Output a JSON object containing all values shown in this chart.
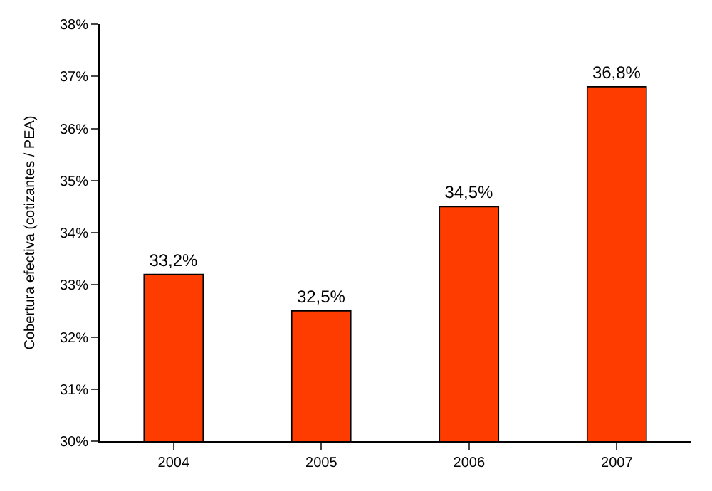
{
  "chart_data": {
    "type": "bar",
    "ylabel": "Cobertura efectiva (cotizantes / PEA)",
    "categories": [
      "2004",
      "2005",
      "2006",
      "2007"
    ],
    "values": [
      33.2,
      32.5,
      34.5,
      36.8
    ],
    "color": "#ff3c00",
    "value_labels": [
      "33,2%",
      "32,5%",
      "34,5%",
      "36,8%"
    ],
    "ylim": [
      30,
      38
    ],
    "yticks": [
      {
        "value": 30,
        "label": "30%"
      },
      {
        "value": 31,
        "label": "31%"
      },
      {
        "value": 32,
        "label": "32%"
      },
      {
        "value": 33,
        "label": "33%"
      },
      {
        "value": 34,
        "label": "34%"
      },
      {
        "value": 35,
        "label": "35%"
      },
      {
        "value": 36,
        "label": "36%"
      },
      {
        "value": 37,
        "label": "37%"
      },
      {
        "value": 38,
        "label": "38%"
      }
    ],
    "grid": false,
    "legend": false
  }
}
